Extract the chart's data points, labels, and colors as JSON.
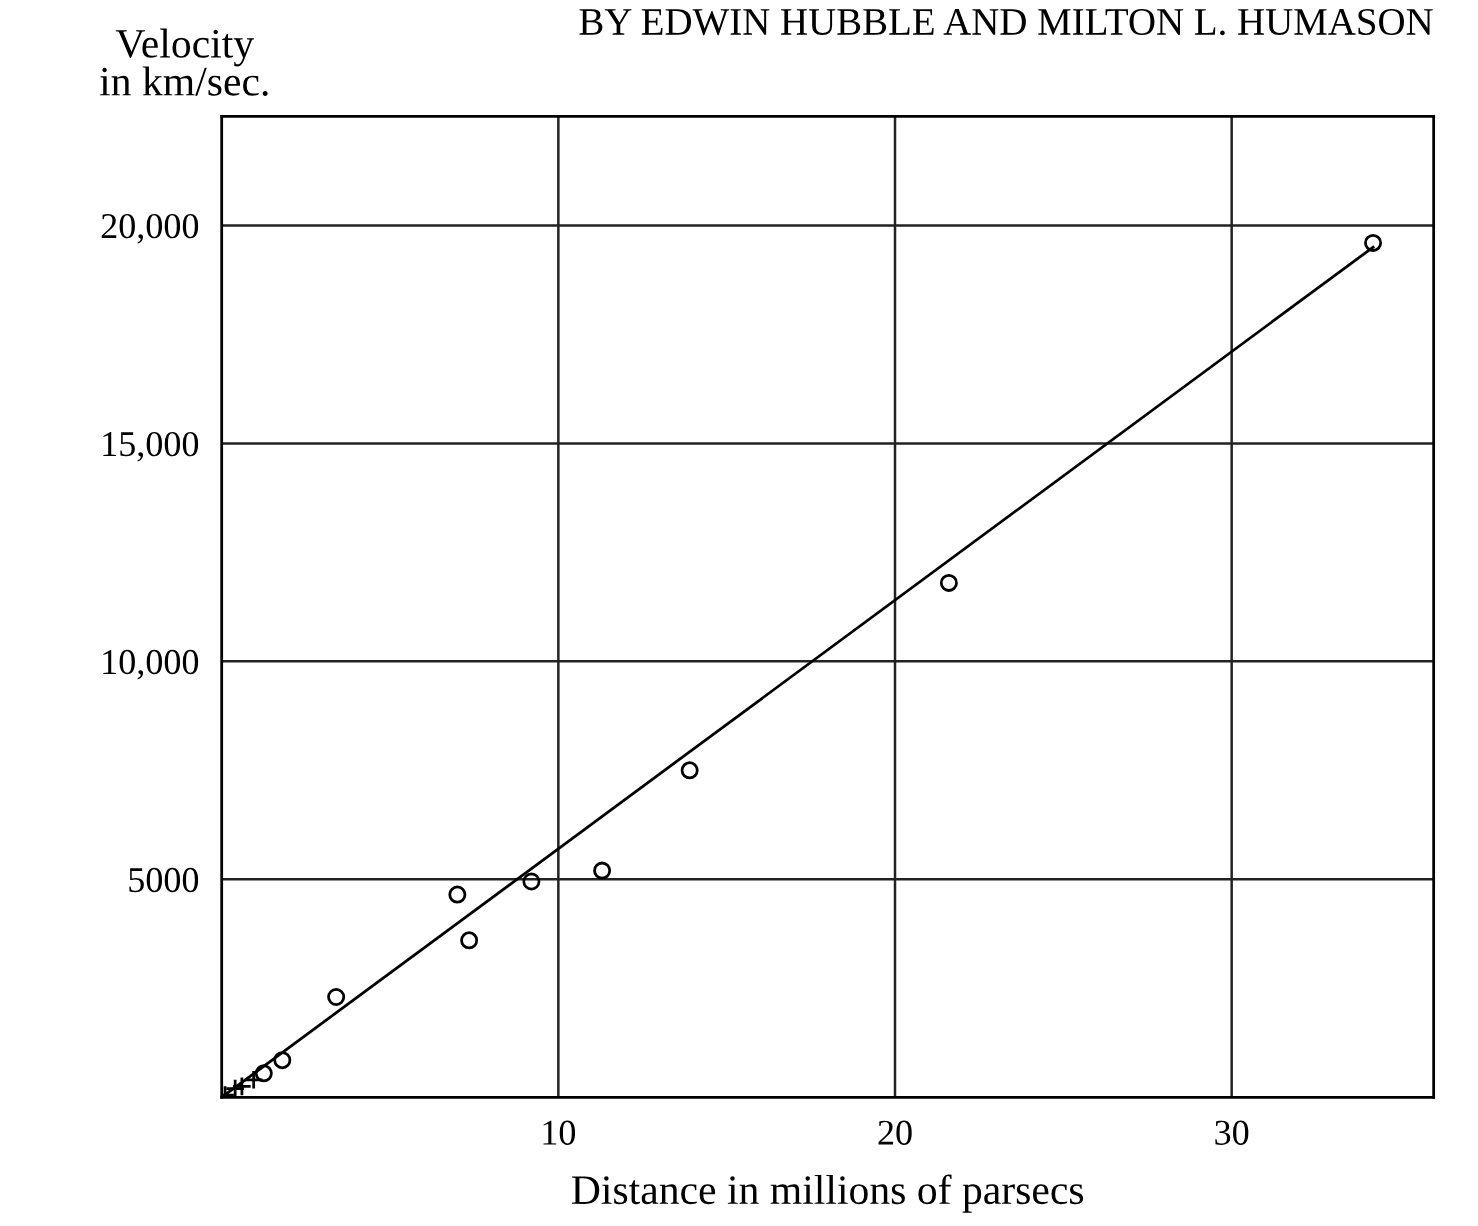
{
  "chart_data": {
    "type": "scatter",
    "title": "BY EDWIN HUBBLE AND MILTON L. HUMASON",
    "xlabel": "Distance in millions of parsecs",
    "ylabel": "Velocity\nin km/sec.",
    "series": [
      {
        "color": "#000000",
        "marker": "circle",
        "x": [
          34.2,
          21.6,
          13.9,
          11.3,
          9.2,
          7.0,
          7.35,
          3.4,
          1.8,
          1.25
        ],
        "values": [
          19600,
          11800,
          7500,
          5200,
          4950,
          4650,
          3600,
          2300,
          850,
          550
        ]
      },
      {
        "color": "#000000",
        "marker": "cross",
        "x": [
          0.95,
          0.6,
          0.4,
          0.1
        ],
        "values": [
          400,
          250,
          200,
          50
        ]
      },
      {
        "type": "line",
        "color": "#000000",
        "marker": "none",
        "x": [
          0,
          34.2
        ],
        "values": [
          0,
          19500
        ]
      }
    ],
    "xlim": [
      0,
      36
    ],
    "ylim": [
      0,
      22500
    ],
    "xticks": [
      10,
      20,
      30
    ],
    "yticks": [
      5000,
      {
        "value": 10000,
        "label": "10,000"
      },
      {
        "value": 15000,
        "label": "15,000"
      },
      {
        "value": 20000,
        "label": "20,000"
      }
    ],
    "grid": true
  }
}
